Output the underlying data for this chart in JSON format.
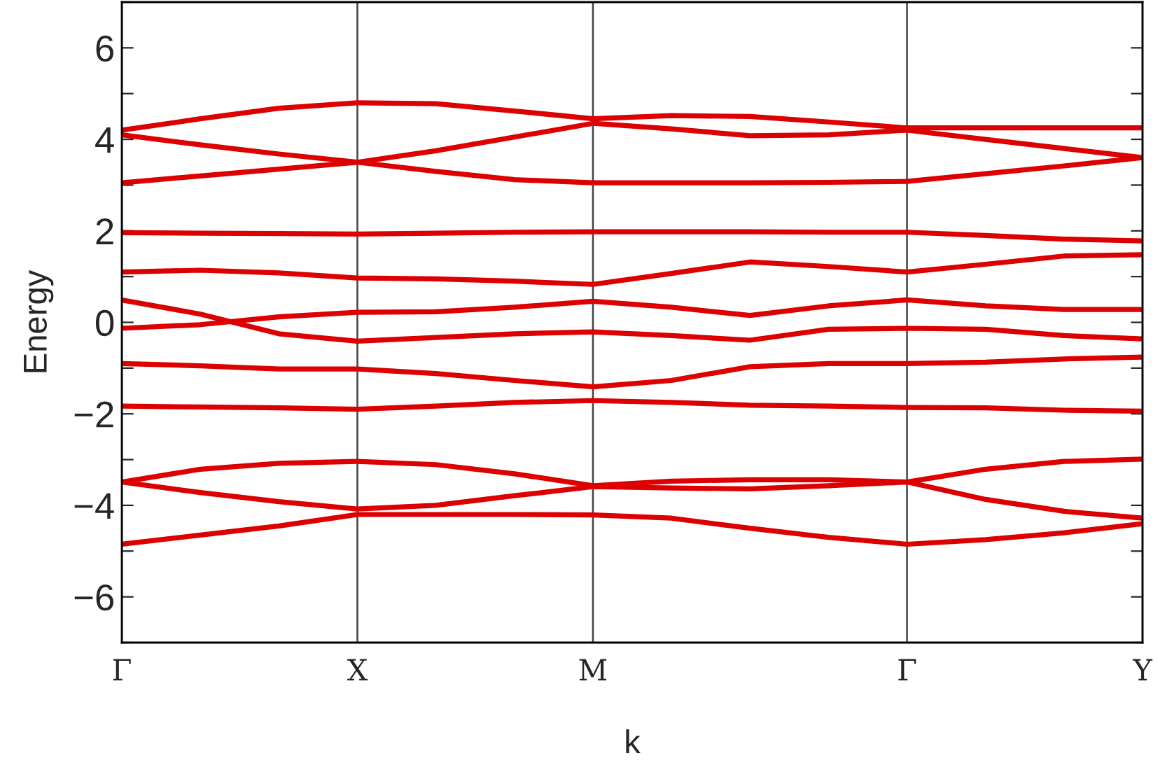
{
  "chart_data": {
    "type": "line",
    "xlabel": "k",
    "ylabel": "Energy",
    "categories": [
      "Γ",
      null,
      null,
      "X",
      null,
      null,
      "M",
      null,
      null,
      null,
      "Γ",
      null,
      null,
      "Y"
    ],
    "series": [
      {
        "color": "#dd0000",
        "values": [
          4.2,
          4.45,
          4.68,
          4.8,
          4.78,
          4.62,
          4.45,
          4.52,
          4.5,
          4.38,
          4.25,
          4.25,
          4.25,
          4.25
        ]
      },
      {
        "color": "#dd0000",
        "values": [
          4.1,
          3.88,
          3.68,
          3.5,
          3.75,
          4.05,
          4.35,
          4.23,
          4.08,
          4.1,
          4.2,
          4.0,
          3.8,
          3.6
        ]
      },
      {
        "color": "#dd0000",
        "values": [
          3.05,
          3.2,
          3.35,
          3.5,
          3.3,
          3.12,
          3.05,
          3.05,
          3.05,
          3.06,
          3.08,
          3.25,
          3.42,
          3.6
        ]
      },
      {
        "color": "#dd0000",
        "values": [
          1.96,
          1.95,
          1.94,
          1.93,
          1.95,
          1.97,
          1.98,
          1.98,
          1.98,
          1.97,
          1.97,
          1.9,
          1.82,
          1.78
        ]
      },
      {
        "color": "#dd0000",
        "values": [
          1.1,
          1.14,
          1.08,
          0.97,
          0.95,
          0.9,
          0.83,
          1.07,
          1.32,
          1.22,
          1.1,
          1.27,
          1.45,
          1.48
        ]
      },
      {
        "color": "#dd0000",
        "values": [
          0.49,
          0.18,
          -0.25,
          -0.41,
          -0.33,
          -0.25,
          -0.21,
          -0.29,
          -0.39,
          -0.15,
          -0.13,
          -0.15,
          -0.29,
          -0.36
        ]
      },
      {
        "color": "#dd0000",
        "values": [
          -0.13,
          -0.05,
          0.12,
          0.22,
          0.23,
          0.33,
          0.46,
          0.33,
          0.15,
          0.36,
          0.49,
          0.36,
          0.28,
          0.28
        ]
      },
      {
        "color": "#dd0000",
        "values": [
          -0.9,
          -0.95,
          -1.02,
          -1.02,
          -1.12,
          -1.27,
          -1.41,
          -1.27,
          -0.97,
          -0.9,
          -0.9,
          -0.87,
          -0.8,
          -0.76
        ]
      },
      {
        "color": "#dd0000",
        "values": [
          -1.83,
          -1.85,
          -1.87,
          -1.9,
          -1.83,
          -1.75,
          -1.71,
          -1.75,
          -1.81,
          -1.83,
          -1.86,
          -1.87,
          -1.92,
          -1.94
        ]
      },
      {
        "color": "#dd0000",
        "values": [
          -3.49,
          -3.21,
          -3.08,
          -3.04,
          -3.11,
          -3.31,
          -3.57,
          -3.47,
          -3.44,
          -3.44,
          -3.49,
          -3.21,
          -3.04,
          -2.99
        ]
      },
      {
        "color": "#dd0000",
        "values": [
          -3.49,
          -3.72,
          -3.92,
          -4.08,
          -4.0,
          -3.79,
          -3.59,
          -3.62,
          -3.64,
          -3.57,
          -3.49,
          -3.87,
          -4.13,
          -4.28
        ]
      },
      {
        "color": "#dd0000",
        "values": [
          -4.85,
          -4.65,
          -4.45,
          -4.2,
          -4.2,
          -4.2,
          -4.21,
          -4.28,
          -4.5,
          -4.7,
          -4.85,
          -4.75,
          -4.6,
          -4.4
        ]
      }
    ],
    "ylim": [
      -7,
      7
    ],
    "yticks": [
      {
        "value": -7,
        "label": null
      },
      -6,
      {
        "value": -5,
        "label": null
      },
      -4,
      {
        "value": -3,
        "label": null
      },
      -2,
      {
        "value": -1,
        "label": null
      },
      0,
      {
        "value": 1,
        "label": null
      },
      2,
      {
        "value": 3,
        "label": null
      },
      4,
      {
        "value": 5,
        "label": null
      },
      6,
      {
        "value": 7,
        "label": null
      }
    ],
    "grid": "x",
    "marker": "none",
    "line_style": "solid"
  }
}
